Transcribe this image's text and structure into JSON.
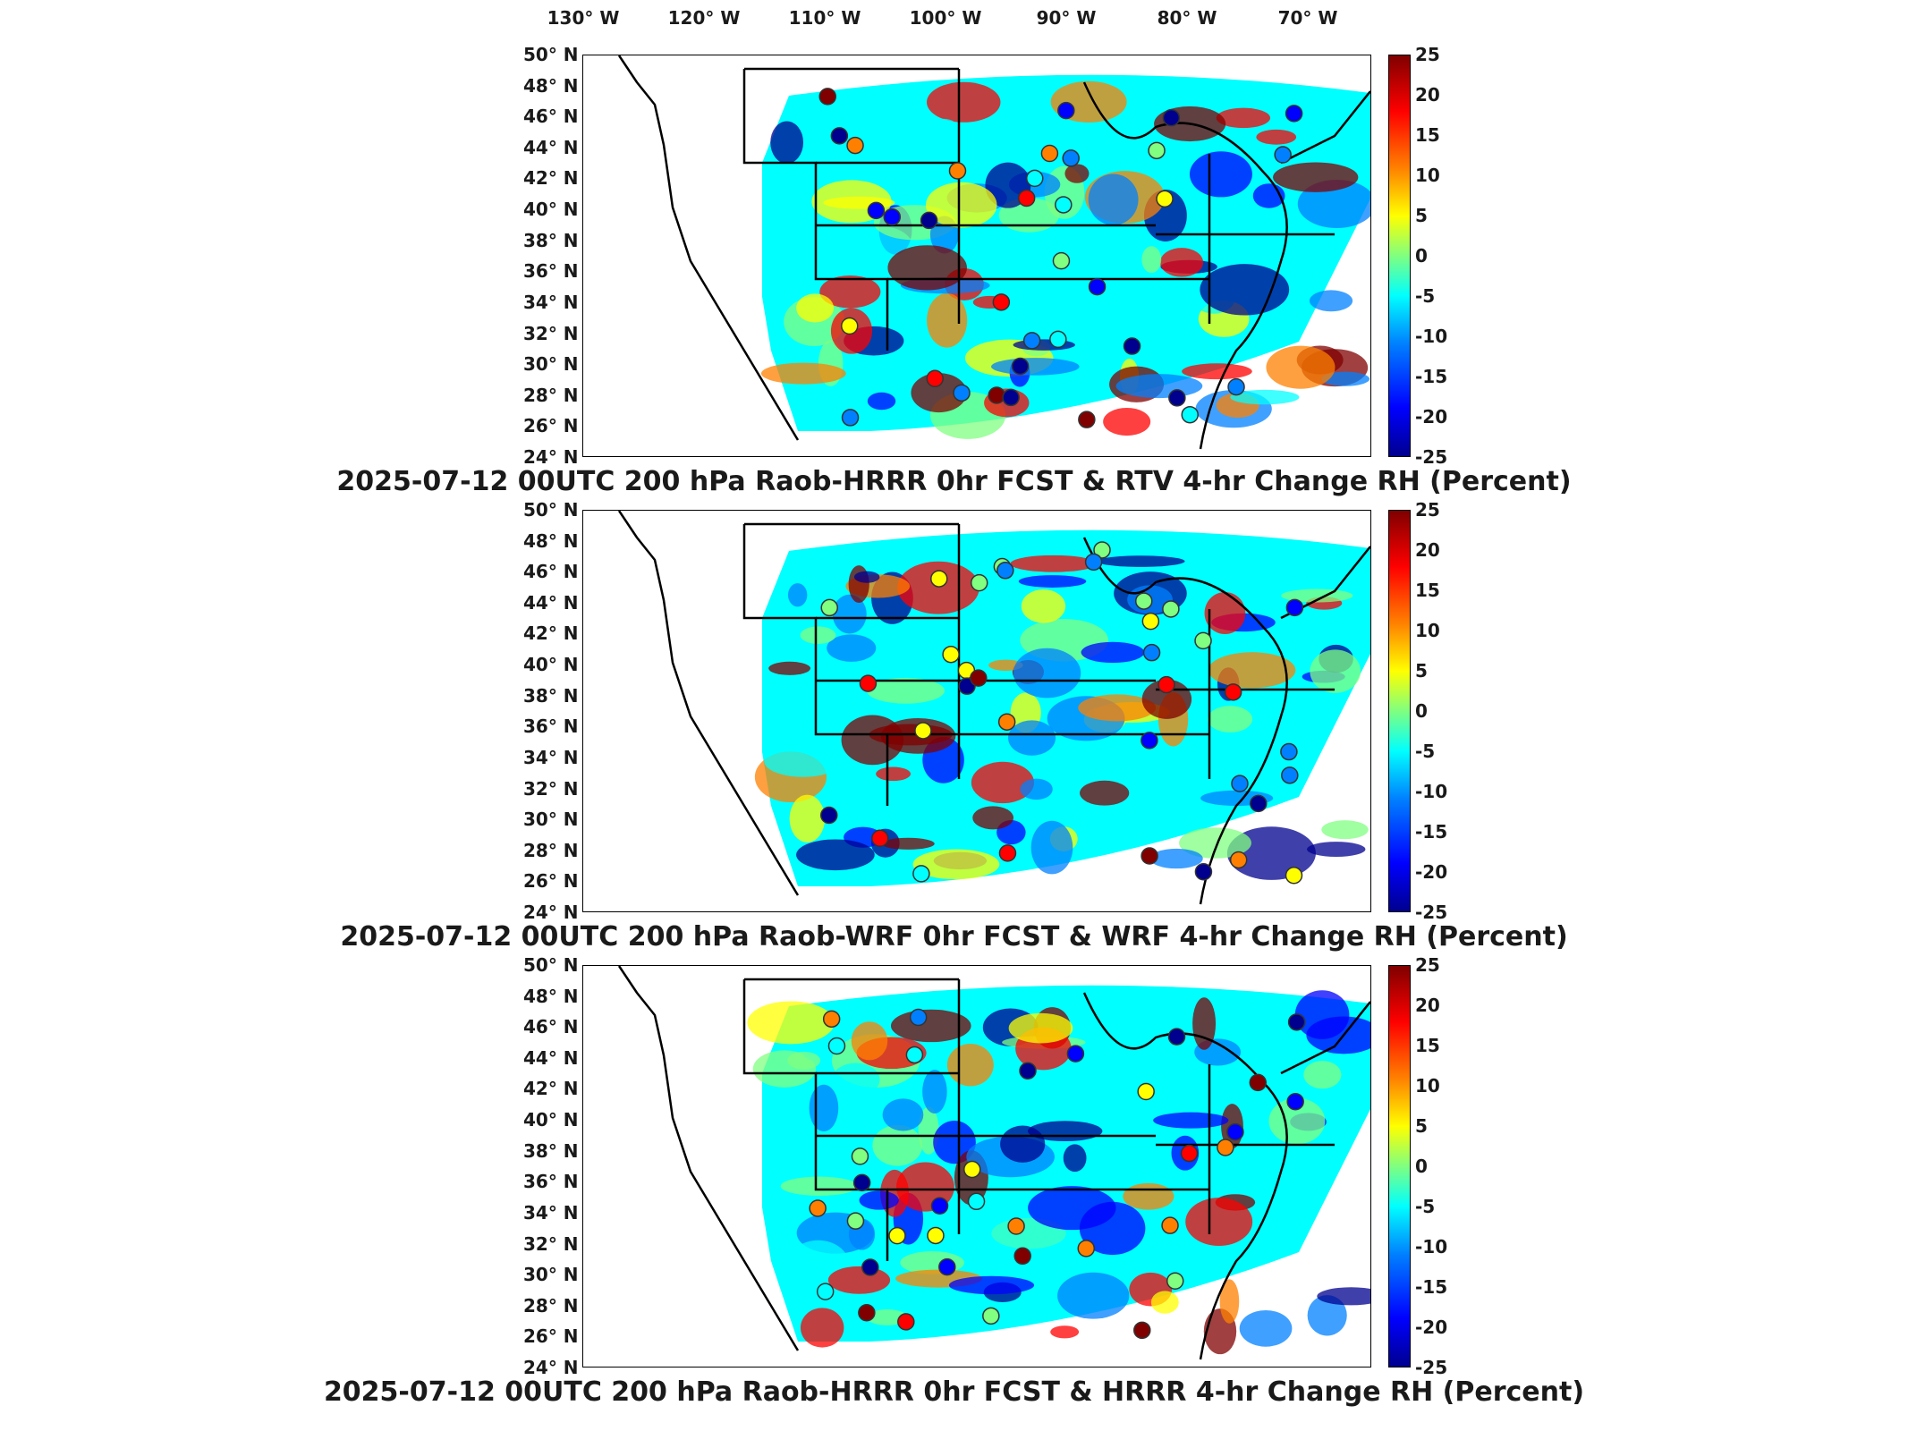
{
  "lon_labels": [
    "130° W",
    "120° W",
    "110° W",
    "100° W",
    "90° W",
    "80° W",
    "70° W"
  ],
  "lat_labels": [
    "50° N",
    "48° N",
    "46° N",
    "44° N",
    "42° N",
    "40° N",
    "38° N",
    "36° N",
    "34° N",
    "32° N",
    "30° N",
    "28° N",
    "26° N",
    "24° N"
  ],
  "colorbar": {
    "ticks": [
      "25",
      "20",
      "15",
      "10",
      "5",
      "0",
      "-5",
      "-10",
      "-15",
      "-20",
      "-25"
    ],
    "colors": [
      "#800000",
      "#ff0000",
      "#ff8000",
      "#ffff00",
      "#80ff80",
      "#00ffff",
      "#0080ff",
      "#0000ff",
      "#00008f"
    ]
  },
  "panels": [
    {
      "title": "2025-07-12 00UTC 200 hPa Raob-HRRR 0hr FCST & RTV 4-hr Change RH (Percent)"
    },
    {
      "title": "2025-07-12 00UTC 200 hPa Raob-WRF 0hr FCST & WRF 4-hr Change RH (Percent)"
    },
    {
      "title": "2025-07-12 00UTC 200 hPa Raob-HRRR 0hr FCST & HRRR 4-hr Change RH (Percent)"
    }
  ]
}
